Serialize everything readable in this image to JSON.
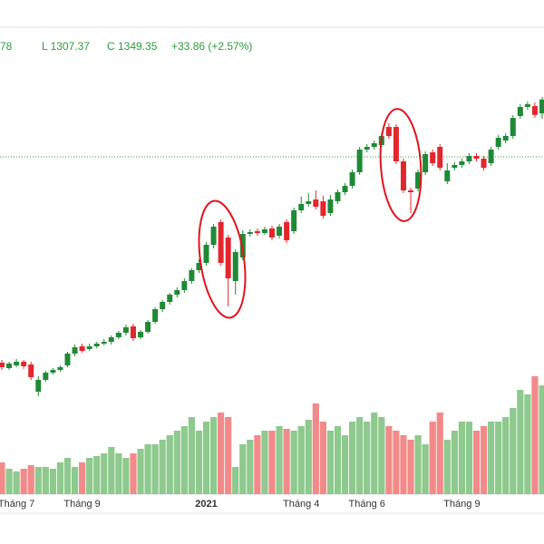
{
  "chart_data": {
    "type": "candlestick",
    "legend_text": [
      "78",
      "L 1307.37",
      "C 1349.35",
      "+33.86 (+2.57%)"
    ],
    "categories": [
      null,
      null,
      "Tháng 7",
      null,
      null,
      null,
      null,
      null,
      null,
      null,
      null,
      "Tháng 9",
      null,
      null,
      null,
      null,
      null,
      null,
      null,
      null,
      null,
      null,
      null,
      null,
      null,
      null,
      null,
      null,
      "2021",
      null,
      null,
      null,
      null,
      null,
      null,
      null,
      null,
      null,
      null,
      null,
      null,
      "Tháng 4",
      null,
      null,
      null,
      null,
      null,
      null,
      null,
      null,
      "Tháng 6",
      null,
      null,
      null,
      null,
      null,
      null,
      null,
      null,
      null,
      null,
      null,
      null,
      "Tháng 9",
      null,
      null,
      null,
      null,
      null,
      null,
      null,
      null,
      null,
      null,
      null
    ],
    "open": [
      769,
      757,
      763,
      771,
      765,
      705,
      731,
      747,
      753,
      763,
      789,
      805,
      799,
      805,
      811,
      815,
      825,
      835,
      849,
      825,
      837,
      859,
      887,
      903,
      919,
      929,
      949,
      973,
      989,
      1029,
      1079,
      1045,
      949,
      1001,
      1053,
      1059,
      1055,
      1065,
      1049,
      1079,
      1059,
      1105,
      1119,
      1129,
      1125,
      1099,
      1125,
      1145,
      1159,
      1189,
      1239,
      1245,
      1249,
      1289,
      1289,
      1213,
      1149,
      1153,
      1189,
      1233,
      1245,
      1169,
      1199,
      1205,
      1213,
      1225,
      1219,
      1209,
      1245,
      1259,
      1269,
      1313,
      1333,
      1335,
      1319
    ],
    "high": [
      775,
      771,
      777,
      775,
      771,
      739,
      751,
      757,
      763,
      793,
      809,
      811,
      811,
      815,
      821,
      829,
      839,
      853,
      855,
      841,
      863,
      891,
      907,
      923,
      935,
      955,
      977,
      997,
      1035,
      1075,
      1085,
      1051,
      1019,
      1061,
      1063,
      1065,
      1069,
      1071,
      1075,
      1085,
      1111,
      1135,
      1143,
      1149,
      1137,
      1139,
      1151,
      1165,
      1195,
      1245,
      1251,
      1259,
      1275,
      1297,
      1295,
      1219,
      1155,
      1195,
      1235,
      1239,
      1251,
      1209,
      1211,
      1219,
      1231,
      1231,
      1225,
      1245,
      1271,
      1275,
      1315,
      1339,
      1345,
      1343,
      1355
    ],
    "low": [
      753,
      753,
      759,
      755,
      731,
      695,
      727,
      743,
      749,
      759,
      783,
      791,
      795,
      801,
      807,
      809,
      821,
      829,
      817,
      821,
      833,
      855,
      881,
      897,
      913,
      923,
      943,
      967,
      983,
      1021,
      983,
      893,
      919,
      995,
      1047,
      1049,
      1051,
      1039,
      1043,
      1033,
      1053,
      1099,
      1113,
      1107,
      1087,
      1093,
      1119,
      1139,
      1153,
      1183,
      1233,
      1239,
      1243,
      1263,
      1207,
      1143,
      1099,
      1147,
      1183,
      1203,
      1193,
      1163,
      1193,
      1199,
      1207,
      1213,
      1193,
      1203,
      1239,
      1253,
      1263,
      1307,
      1327,
      1309,
      1307.37
    ],
    "close": [
      759,
      767,
      771,
      761,
      737,
      731,
      747,
      753,
      759,
      789,
      803,
      795,
      805,
      811,
      815,
      825,
      835,
      847,
      823,
      837,
      859,
      887,
      903,
      919,
      929,
      949,
      973,
      989,
      1029,
      1069,
      989,
      955,
      1013,
      1053,
      1057,
      1055,
      1063,
      1045,
      1069,
      1039,
      1105,
      1119,
      1125,
      1113,
      1093,
      1129,
      1145,
      1159,
      1189,
      1239,
      1245,
      1253,
      1269,
      1269,
      1213,
      1149,
      1145,
      1189,
      1229,
      1209,
      1199,
      1193,
      1205,
      1213,
      1225,
      1219,
      1199,
      1239,
      1265,
      1269,
      1309,
      1333,
      1339,
      1315.49,
      1349.35
    ],
    "volume": [
      35,
      28,
      25,
      28,
      32,
      30,
      30,
      28,
      35,
      40,
      30,
      35,
      40,
      42,
      45,
      52,
      45,
      40,
      45,
      50,
      55,
      55,
      60,
      65,
      70,
      75,
      85,
      70,
      80,
      85,
      90,
      85,
      30,
      55,
      60,
      65,
      70,
      70,
      75,
      72,
      70,
      75,
      82,
      100,
      80,
      70,
      75,
      65,
      80,
      85,
      80,
      90,
      85,
      75,
      70,
      65,
      60,
      65,
      55,
      80,
      90,
      60,
      70,
      80,
      80,
      70,
      75,
      80,
      80,
      85,
      95,
      115,
      110,
      130,
      120
    ],
    "up_color": "#1f8a36",
    "down_color": "#e3262d",
    "volume_up_color": "#8ec98e",
    "volume_down_color": "#f28a8a",
    "reference_line": 1223
  }
}
